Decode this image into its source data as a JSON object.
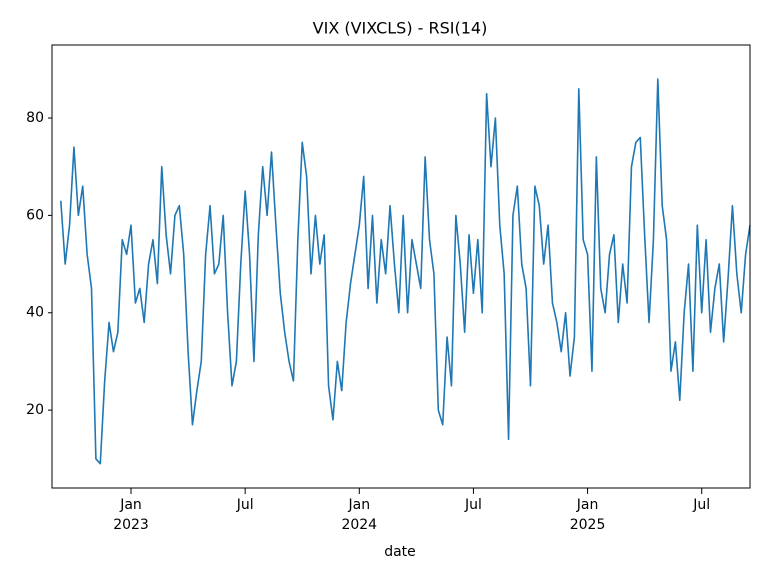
{
  "chart_data": {
    "type": "line",
    "title": "VIX (VIXCLS) - RSI(14)",
    "x_label": "date",
    "categories": [
      null,
      null,
      null,
      null,
      null,
      null,
      null,
      null,
      null,
      null,
      null,
      null,
      null,
      null,
      null,
      null,
      null,
      null,
      "Jan\n2023",
      null,
      null,
      null,
      null,
      null,
      null,
      null,
      null,
      null,
      null,
      null,
      null,
      null,
      null,
      null,
      null,
      null,
      null,
      null,
      null,
      null,
      null,
      null,
      null,
      null,
      "Jul",
      null,
      null,
      null,
      null,
      null,
      null,
      null,
      null,
      null,
      null,
      null,
      null,
      null,
      null,
      null,
      null,
      null,
      null,
      null,
      null,
      null,
      null,
      null,
      null,
      null,
      "Jan\n2024",
      null,
      null,
      null,
      null,
      null,
      null,
      null,
      null,
      null,
      null,
      null,
      null,
      null,
      null,
      null,
      null,
      null,
      null,
      null,
      null,
      null,
      null,
      null,
      null,
      null,
      "Jul",
      null,
      null,
      null,
      null,
      null,
      null,
      null,
      null,
      null,
      null,
      null,
      null,
      null,
      null,
      null,
      null,
      null,
      null,
      null,
      null,
      null,
      null,
      null,
      null,
      null,
      "Jan\n2025",
      null,
      null,
      null,
      null,
      null,
      null,
      null,
      null,
      null,
      null,
      null,
      null,
      null,
      null,
      null,
      null,
      null,
      null,
      null,
      null,
      null,
      null,
      null,
      null,
      null,
      "Jul",
      null,
      null,
      null,
      null,
      null,
      null,
      null,
      null,
      null,
      null,
      null
    ],
    "series": [
      {
        "name": "RSI(14)",
        "color": "#1f77b4",
        "values": [
          null,
          null,
          63,
          50,
          58,
          74,
          60,
          66,
          52,
          45,
          10,
          9,
          26,
          38,
          32,
          36,
          55,
          52,
          58,
          42,
          45,
          38,
          50,
          55,
          46,
          70,
          56,
          48,
          60,
          62,
          52,
          32,
          17,
          24,
          30,
          52,
          62,
          48,
          50,
          60,
          40,
          25,
          30,
          50,
          65,
          52,
          30,
          56,
          70,
          60,
          73,
          58,
          44,
          36,
          30,
          26,
          55,
          75,
          68,
          48,
          60,
          50,
          56,
          25,
          18,
          30,
          24,
          38,
          46,
          52,
          58,
          68,
          45,
          60,
          42,
          55,
          48,
          62,
          50,
          40,
          60,
          40,
          55,
          50,
          45,
          72,
          55,
          48,
          20,
          17,
          35,
          25,
          60,
          50,
          36,
          56,
          44,
          55,
          40,
          85,
          70,
          80,
          58,
          48,
          14,
          60,
          66,
          50,
          45,
          25,
          66,
          62,
          50,
          58,
          42,
          38,
          32,
          40,
          27,
          35,
          86,
          55,
          52,
          28,
          72,
          45,
          40,
          52,
          56,
          38,
          50,
          42,
          70,
          75,
          76,
          56,
          38,
          55,
          88,
          62,
          55,
          28,
          34,
          22,
          40,
          50,
          28,
          58,
          40,
          55,
          36,
          45,
          50,
          34,
          47,
          62,
          48,
          40,
          52,
          58
        ]
      }
    ],
    "ylim": [
      4,
      95
    ],
    "yticks": [
      20,
      40,
      60,
      80
    ],
    "grid": false
  }
}
